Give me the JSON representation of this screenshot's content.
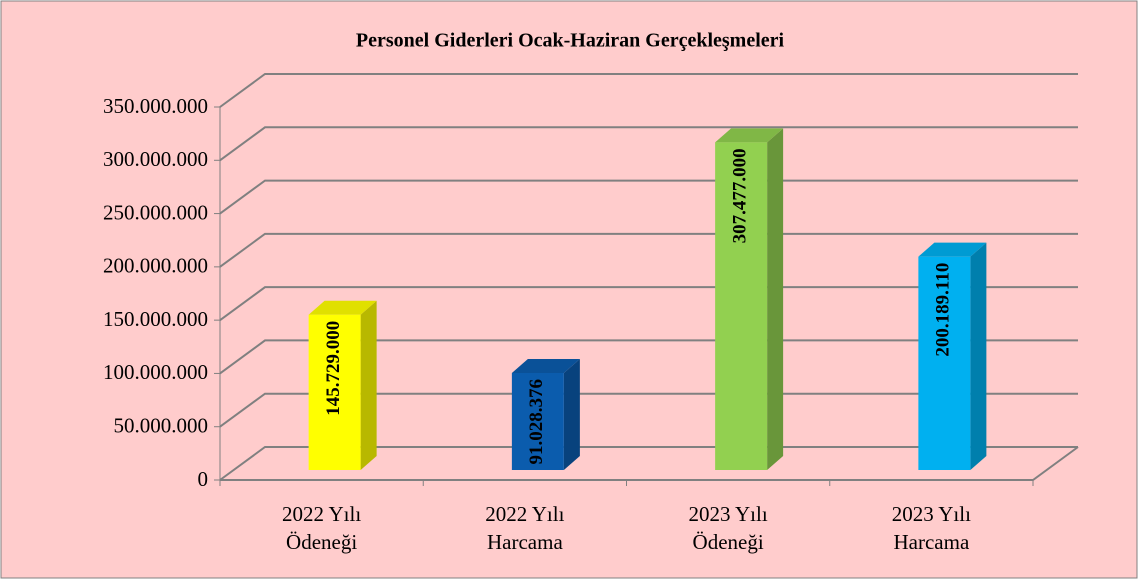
{
  "chart_data": {
    "type": "bar3d",
    "title": "Personel Giderleri Ocak-Haziran Gerçekleşmeleri",
    "categories": [
      "2022 Yılı Ödeneği",
      "2022 Yılı Harcama",
      "2023 Yılı Ödeneği",
      "2023 Yılı Harcama"
    ],
    "values": [
      145729000,
      91028376,
      307477000,
      200189110
    ],
    "value_labels": [
      "145.729.000",
      "91.028.376",
      "307.477.000",
      "200.189.110"
    ],
    "colors": [
      "#ffff00",
      "#0b5cad",
      "#92d050",
      "#00b0f0"
    ],
    "ylim": [
      0,
      350000000
    ],
    "yticks": [
      0,
      {
        "value": 50000000,
        "label": "50.000.000"
      },
      {
        "value": 100000000,
        "label": "100.000.000"
      },
      {
        "value": 150000000,
        "label": "150.000.000"
      },
      {
        "value": 200000000,
        "label": "200.000.000"
      },
      {
        "value": 250000000,
        "label": "250.000.000"
      },
      {
        "value": 300000000,
        "label": "300.000.000"
      },
      {
        "value": 350000000,
        "label": "350.000.000"
      }
    ],
    "grid": true
  }
}
